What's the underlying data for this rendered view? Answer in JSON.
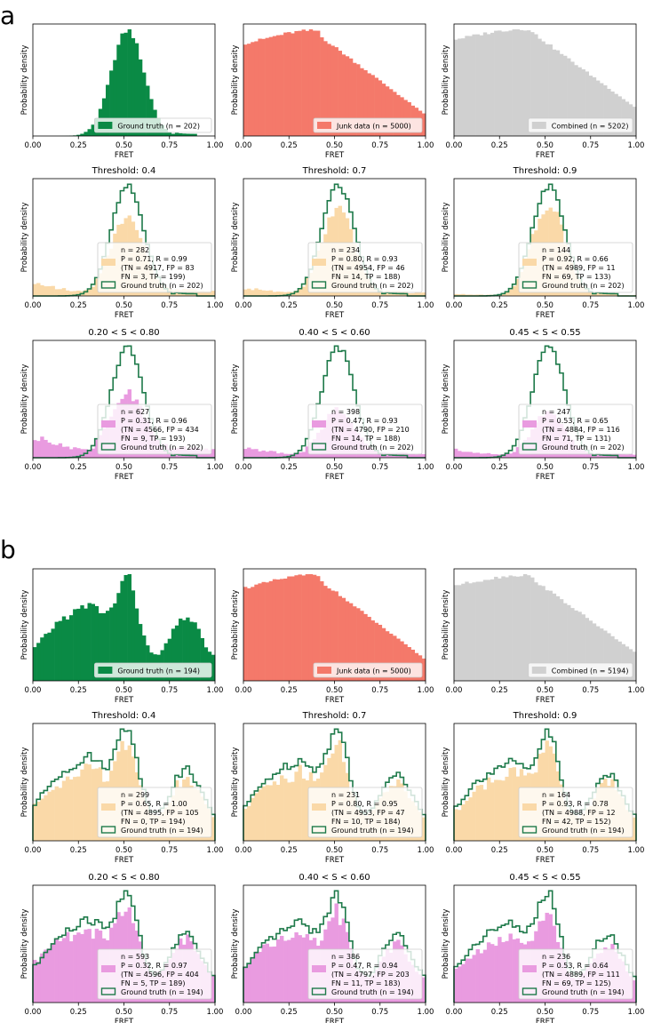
{
  "figure": {
    "panel_a_letter": "a",
    "panel_b_letter": "b",
    "xlabel": "FRET",
    "ylabel": "Probability density",
    "xticks": [
      "0.00",
      "0.25",
      "0.50",
      "0.75",
      "1.00"
    ]
  },
  "colors": {
    "ground_truth": "#0a8a45",
    "ground_truth_line": "#1e7a4a",
    "junk": "#f4796a",
    "combined": "#d0d0d0",
    "threshold_fill": "#fad9a8",
    "stoich_fill": "#e99be0"
  },
  "chart_data": [
    {
      "id": "a11",
      "type": "bar",
      "shape": "gauss",
      "title": "",
      "fill": "ground_truth",
      "outline": false,
      "legend": [
        "Ground truth (n = 202)"
      ],
      "xlabel": "FRET",
      "ylabel": "Probability density",
      "xlim": [
        0,
        1
      ]
    },
    {
      "id": "a12",
      "type": "bar",
      "shape": "junk",
      "title": "",
      "fill": "junk",
      "outline": false,
      "legend": [
        "Junk data (n = 5000)"
      ],
      "xlabel": "FRET",
      "ylabel": "Probability density",
      "xlim": [
        0,
        1
      ]
    },
    {
      "id": "a13",
      "type": "bar",
      "shape": "combined",
      "title": "",
      "fill": "combined",
      "outline": false,
      "legend": [
        "Combined (n = 5202)"
      ],
      "xlabel": "FRET",
      "ylabel": "Probability density",
      "xlim": [
        0,
        1
      ]
    },
    {
      "id": "a21",
      "type": "bar",
      "shape": "gauss",
      "title": "Threshold: 0.4",
      "fill": "threshold_fill",
      "fillScale": 0.72,
      "tail": 0.12,
      "outline": true,
      "legend": [
        "n = 282",
        "P = 0.71, R = 0.99",
        "(TN = 4917, FP = 83",
        "FN = 3, TP = 199)",
        "Ground truth (n = 202)"
      ],
      "xlabel": "FRET",
      "ylabel": "Probability density",
      "xlim": [
        0,
        1
      ]
    },
    {
      "id": "a22",
      "type": "bar",
      "shape": "gauss",
      "title": "Threshold: 0.7",
      "fill": "threshold_fill",
      "fillScale": 0.8,
      "tail": 0.08,
      "outline": true,
      "legend": [
        "n = 234",
        "P = 0.80, R = 0.93",
        "(TN = 4954, FP = 46",
        "FN = 14, TP = 188)",
        "Ground truth (n = 202)"
      ],
      "xlabel": "FRET",
      "ylabel": "Probability density",
      "xlim": [
        0,
        1
      ]
    },
    {
      "id": "a23",
      "type": "bar",
      "shape": "gauss",
      "title": "Threshold: 0.9",
      "fill": "threshold_fill",
      "fillScale": 0.9,
      "tail": 0.02,
      "outline": true,
      "legend": [
        "n = 144",
        "P = 0.92, R = 0.66",
        "(TN = 4989, FP = 11",
        "FN = 69, TP = 133)",
        "Ground truth (n = 202)"
      ],
      "xlabel": "FRET",
      "ylabel": "Probability density",
      "xlim": [
        0,
        1
      ]
    },
    {
      "id": "a31",
      "type": "bar",
      "shape": "gauss",
      "title": "0.20 < S < 0.80",
      "fill": "stoich_fill",
      "fillScale": 0.55,
      "tail": 0.22,
      "outline": true,
      "legend": [
        "n = 627",
        "P = 0.31, R = 0.96",
        "(TN = 4566, FP = 434",
        "FN = 9, TP = 193)",
        "Ground truth (n = 202)"
      ],
      "xlabel": "FRET",
      "ylabel": "Probability density",
      "xlim": [
        0,
        1
      ]
    },
    {
      "id": "a32",
      "type": "bar",
      "shape": "gauss",
      "title": "0.40 < S < 0.60",
      "fill": "stoich_fill",
      "fillScale": 0.42,
      "tail": 0.1,
      "outline": true,
      "legend": [
        "n = 398",
        "P = 0.47, R = 0.93",
        "(TN = 4790, FP = 210",
        "FN = 14, TP = 188)",
        "Ground truth (n = 202)"
      ],
      "xlabel": "FRET",
      "ylabel": "Probability density",
      "xlim": [
        0,
        1
      ]
    },
    {
      "id": "a33",
      "type": "bar",
      "shape": "gauss",
      "title": "0.45 < S < 0.55",
      "fill": "stoich_fill",
      "fillScale": 0.4,
      "tail": 0.08,
      "outline": true,
      "legend": [
        "n = 247",
        "P = 0.53, R = 0.65",
        "(TN = 4884, FP = 116",
        "FN = 71, TP = 131)",
        "Ground truth (n = 202)"
      ],
      "xlabel": "FRET",
      "ylabel": "Probability density",
      "xlim": [
        0,
        1
      ]
    },
    {
      "id": "b11",
      "type": "bar",
      "shape": "multi",
      "title": "",
      "fill": "ground_truth",
      "outline": false,
      "legend": [
        "Ground truth (n = 194)"
      ],
      "xlabel": "FRET",
      "ylabel": "Probability density",
      "xlim": [
        0,
        1
      ]
    },
    {
      "id": "b12",
      "type": "bar",
      "shape": "junk",
      "title": "",
      "fill": "junk",
      "outline": false,
      "legend": [
        "Junk data (n = 5000)"
      ],
      "xlabel": "FRET",
      "ylabel": "Probability density",
      "xlim": [
        0,
        1
      ]
    },
    {
      "id": "b13",
      "type": "bar",
      "shape": "combined",
      "title": "",
      "fill": "combined",
      "outline": false,
      "legend": [
        "Combined (n = 5194)"
      ],
      "xlabel": "FRET",
      "ylabel": "Probability density",
      "xlim": [
        0,
        1
      ]
    },
    {
      "id": "b21",
      "type": "bar",
      "shape": "multi",
      "title": "Threshold: 0.4",
      "fill": "threshold_fill",
      "fillScale": 0.92,
      "tail": 0.05,
      "outline": true,
      "legend": [
        "n = 299",
        "P = 0.65, R = 1.00",
        "(TN = 4895, FP = 105",
        "FN = 0, TP = 194)",
        "Ground truth (n = 194)"
      ],
      "xlabel": "FRET",
      "ylabel": "Probability density",
      "xlim": [
        0,
        1
      ]
    },
    {
      "id": "b22",
      "type": "bar",
      "shape": "multi",
      "title": "Threshold: 0.7",
      "fill": "threshold_fill",
      "fillScale": 0.92,
      "tail": 0.03,
      "outline": true,
      "legend": [
        "n = 231",
        "P = 0.80, R = 0.95",
        "(TN = 4953, FP = 47",
        "FN = 10, TP = 184)",
        "Ground truth (n = 194)"
      ],
      "xlabel": "FRET",
      "ylabel": "Probability density",
      "xlim": [
        0,
        1
      ]
    },
    {
      "id": "b23",
      "type": "bar",
      "shape": "multi",
      "title": "Threshold: 0.9",
      "fill": "threshold_fill",
      "fillScale": 0.95,
      "tail": 0.01,
      "outline": true,
      "legend": [
        "n = 164",
        "P = 0.93, R = 0.78",
        "(TN = 4988, FP = 12",
        "FN = 42, TP = 152)",
        "Ground truth (n = 194)"
      ],
      "xlabel": "FRET",
      "ylabel": "Probability density",
      "xlim": [
        0,
        1
      ]
    },
    {
      "id": "b31",
      "type": "bar",
      "shape": "multi",
      "title": "0.20 < S < 0.80",
      "fill": "stoich_fill",
      "fillScale": 0.9,
      "tail": 0.12,
      "outline": true,
      "legend": [
        "n = 593",
        "P = 0.32, R = 0.97",
        "(TN = 4596, FP = 404",
        "FN = 5, TP = 189)",
        "Ground truth (n = 194)"
      ],
      "xlabel": "FRET",
      "ylabel": "Probability density",
      "xlim": [
        0,
        1
      ]
    },
    {
      "id": "b32",
      "type": "bar",
      "shape": "multi",
      "title": "0.40 < S < 0.60",
      "fill": "stoich_fill",
      "fillScale": 0.88,
      "tail": 0.08,
      "outline": true,
      "legend": [
        "n = 386",
        "P = 0.47, R = 0.94",
        "(TN = 4797, FP = 203",
        "FN = 11, TP = 183)",
        "Ground truth (n = 194)"
      ],
      "xlabel": "FRET",
      "ylabel": "Probability density",
      "xlim": [
        0,
        1
      ]
    },
    {
      "id": "b33",
      "type": "bar",
      "shape": "multi",
      "title": "0.45 < S < 0.55",
      "fill": "stoich_fill",
      "fillScale": 0.86,
      "tail": 0.06,
      "outline": true,
      "legend": [
        "n = 236",
        "P = 0.53, R = 0.64",
        "(TN = 4889, FP = 111",
        "FN = 69, TP = 125)",
        "Ground truth (n = 194)"
      ],
      "xlabel": "FRET",
      "ylabel": "Probability density",
      "xlim": [
        0,
        1
      ]
    }
  ]
}
